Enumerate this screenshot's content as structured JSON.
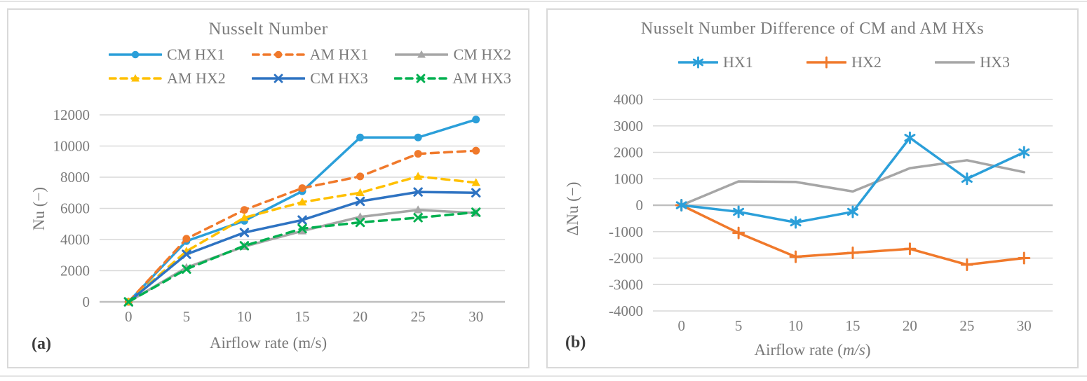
{
  "panel_labels": {
    "a": "(a)",
    "b": "(b)"
  },
  "chart_data": [
    {
      "type": "line",
      "panel": "a",
      "title": "Nusselt Number",
      "xlabel": "Airflow rate (m/s)",
      "ylabel": "Nu (−)",
      "categories": [
        0,
        5,
        10,
        15,
        20,
        25,
        30
      ],
      "ylim": [
        0,
        12000
      ],
      "yticks": [
        0,
        2000,
        4000,
        6000,
        8000,
        10000,
        12000
      ],
      "baseline": 0,
      "grid": true,
      "legend_position": "top",
      "legend_rows": [
        3,
        3
      ],
      "draw_order": [
        0,
        1,
        2,
        3,
        4,
        5
      ],
      "series": [
        {
          "name": "CM HX1",
          "color": "#2b9fd9",
          "dash": false,
          "marker": "circle",
          "values": [
            0,
            3900,
            5200,
            7100,
            10550,
            10550,
            11700
          ]
        },
        {
          "name": "AM HX1",
          "color": "#f0792b",
          "dash": true,
          "marker": "circle",
          "values": [
            0,
            4050,
            5900,
            7300,
            8050,
            9500,
            9700
          ]
        },
        {
          "name": "CM HX2",
          "color": "#a6a6a6",
          "dash": false,
          "marker": "triangle",
          "values": [
            0,
            2200,
            3550,
            4550,
            5450,
            5900,
            5700
          ]
        },
        {
          "name": "AM HX2",
          "color": "#ffc000",
          "dash": true,
          "marker": "triangle",
          "values": [
            0,
            3250,
            5400,
            6400,
            7000,
            8050,
            7650
          ]
        },
        {
          "name": "CM HX3",
          "color": "#2e73c2",
          "dash": false,
          "marker": "x",
          "values": [
            0,
            3050,
            4450,
            5250,
            6450,
            7050,
            7000
          ]
        },
        {
          "name": "AM HX3",
          "color": "#00b050",
          "dash": true,
          "marker": "x",
          "values": [
            0,
            2100,
            3600,
            4700,
            5100,
            5400,
            5750
          ]
        }
      ]
    },
    {
      "type": "line",
      "panel": "b",
      "title": "Nusselt Number Difference of CM and AM HXs",
      "xlabel": "Airflow rate (m/s)",
      "xlabel_unit_italic": true,
      "ylabel": "ΔNu (−)",
      "categories": [
        0,
        5,
        10,
        15,
        20,
        25,
        30
      ],
      "ylim": [
        -4000,
        4000
      ],
      "yticks": [
        4000,
        3000,
        2000,
        1000,
        0,
        -1000,
        -2000,
        -3000,
        -4000
      ],
      "baseline": 0,
      "grid": true,
      "legend_position": "top",
      "legend_rows": [
        3
      ],
      "draw_order": [
        2,
        1,
        0
      ],
      "series": [
        {
          "name": "HX1",
          "color": "#2b9fd9",
          "dash": false,
          "marker": "asterisk",
          "values": [
            0,
            -250,
            -650,
            -250,
            2550,
            1000,
            2000
          ]
        },
        {
          "name": "HX2",
          "color": "#f0792b",
          "dash": false,
          "marker": "plus",
          "values": [
            0,
            -1050,
            -1950,
            -1800,
            -1650,
            -2250,
            -2000
          ]
        },
        {
          "name": "HX3",
          "color": "#a6a6a6",
          "dash": false,
          "marker": "none",
          "values": [
            0,
            900,
            880,
            520,
            1400,
            1700,
            1250
          ]
        }
      ]
    }
  ]
}
